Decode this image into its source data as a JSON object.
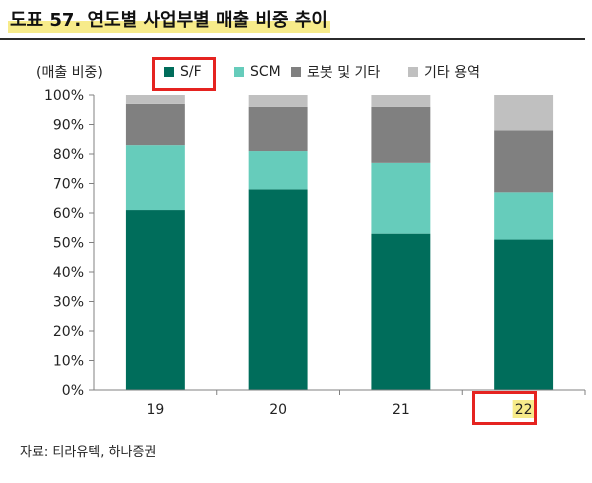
{
  "title": "도표 57. 연도별 사업부별 매출 비중 추이",
  "unit_label": "(매출 비중)",
  "source": "자료: 티라유텍, 하나증권",
  "colors": {
    "sf": "#006d5b",
    "scm": "#66ccbb",
    "robot": "#808080",
    "other": "#c0c0c0",
    "highlight": "#e52320",
    "title_highlight": "#f7eb8a"
  },
  "chart_data": {
    "type": "bar",
    "stacked": true,
    "categories": [
      "19",
      "20",
      "21",
      "22"
    ],
    "series": [
      {
        "name": "S/F",
        "color": "#006d5b",
        "values": [
          61,
          68,
          53,
          51
        ]
      },
      {
        "name": "SCM",
        "color": "#66ccbb",
        "values": [
          22,
          13,
          24,
          16
        ]
      },
      {
        "name": "로봇 및 기타",
        "color": "#808080",
        "values": [
          14,
          15,
          19,
          21
        ]
      },
      {
        "name": "기타 용역",
        "color": "#c0c0c0",
        "values": [
          3,
          4,
          4,
          12
        ]
      }
    ],
    "ylim": [
      0,
      100
    ],
    "yticks": [
      "0%",
      "10%",
      "20%",
      "30%",
      "40%",
      "50%",
      "60%",
      "70%",
      "80%",
      "90%",
      "100%"
    ],
    "legend_position": "top",
    "grid": false,
    "highlighted": [
      "S/F",
      "22"
    ]
  }
}
